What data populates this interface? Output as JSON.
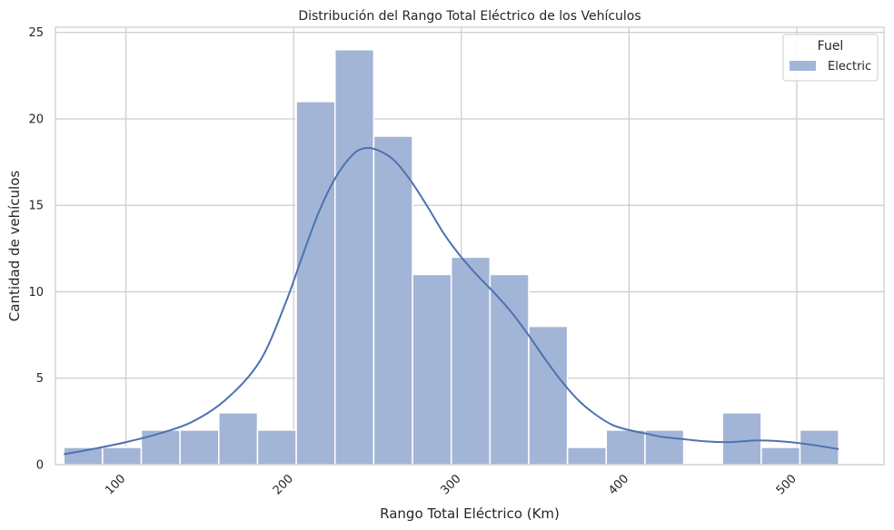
{
  "chart_data": {
    "type": "bar",
    "title": "Distribución del Rango Total Eléctrico de los Vehículos",
    "xlabel": "Rango Total Eléctrico (Km)",
    "ylabel": "Cantidad de vehículos",
    "xlim": [
      58,
      552
    ],
    "ylim": [
      0,
      25.3
    ],
    "x_ticks": [
      100,
      200,
      300,
      400,
      500
    ],
    "y_ticks": [
      0,
      5,
      10,
      15,
      20,
      25
    ],
    "grid": true,
    "legend": {
      "title": "Fuel",
      "placement": "top-right",
      "entries": [
        "Electric"
      ]
    },
    "colors": {
      "bar": "#a3b5d6",
      "bar_edge": "#ffffff",
      "kde": "#4c72b0",
      "grid": "#cccccc",
      "spine": "#cccccc"
    },
    "bins": [
      {
        "start": 63.0,
        "end": 86.1,
        "count": 1
      },
      {
        "start": 86.1,
        "end": 109.2,
        "count": 1
      },
      {
        "start": 109.2,
        "end": 132.3,
        "count": 2
      },
      {
        "start": 132.3,
        "end": 155.4,
        "count": 2
      },
      {
        "start": 155.4,
        "end": 178.5,
        "count": 3
      },
      {
        "start": 178.5,
        "end": 201.6,
        "count": 2
      },
      {
        "start": 201.6,
        "end": 224.7,
        "count": 21
      },
      {
        "start": 224.7,
        "end": 247.8,
        "count": 24
      },
      {
        "start": 247.8,
        "end": 270.9,
        "count": 19
      },
      {
        "start": 270.9,
        "end": 294.0,
        "count": 11
      },
      {
        "start": 294.0,
        "end": 317.1,
        "count": 12
      },
      {
        "start": 317.1,
        "end": 340.2,
        "count": 11
      },
      {
        "start": 340.2,
        "end": 363.3,
        "count": 8
      },
      {
        "start": 363.3,
        "end": 386.4,
        "count": 1
      },
      {
        "start": 386.4,
        "end": 409.5,
        "count": 2
      },
      {
        "start": 409.5,
        "end": 432.6,
        "count": 2
      },
      {
        "start": 432.6,
        "end": 455.7,
        "count": 0
      },
      {
        "start": 455.7,
        "end": 478.8,
        "count": 3
      },
      {
        "start": 478.8,
        "end": 501.9,
        "count": 1
      },
      {
        "start": 501.9,
        "end": 525.0,
        "count": 2
      }
    ],
    "kde": {
      "x": [
        63,
        80,
        100,
        120,
        140,
        160,
        180,
        195,
        205,
        215,
        225,
        235,
        242,
        250,
        260,
        270,
        280,
        290,
        300,
        310,
        320,
        330,
        340,
        350,
        360,
        370,
        380,
        390,
        400,
        410,
        420,
        430,
        445,
        460,
        475,
        490,
        505,
        525
      ],
      "y": [
        0.6,
        0.9,
        1.3,
        1.8,
        2.5,
        3.8,
        6.0,
        9.3,
        12.0,
        14.6,
        16.6,
        17.9,
        18.3,
        18.2,
        17.6,
        16.4,
        14.9,
        13.3,
        12.0,
        10.9,
        9.9,
        8.8,
        7.5,
        6.1,
        4.8,
        3.7,
        2.9,
        2.3,
        2.0,
        1.8,
        1.6,
        1.5,
        1.35,
        1.3,
        1.4,
        1.35,
        1.2,
        0.9
      ]
    }
  }
}
